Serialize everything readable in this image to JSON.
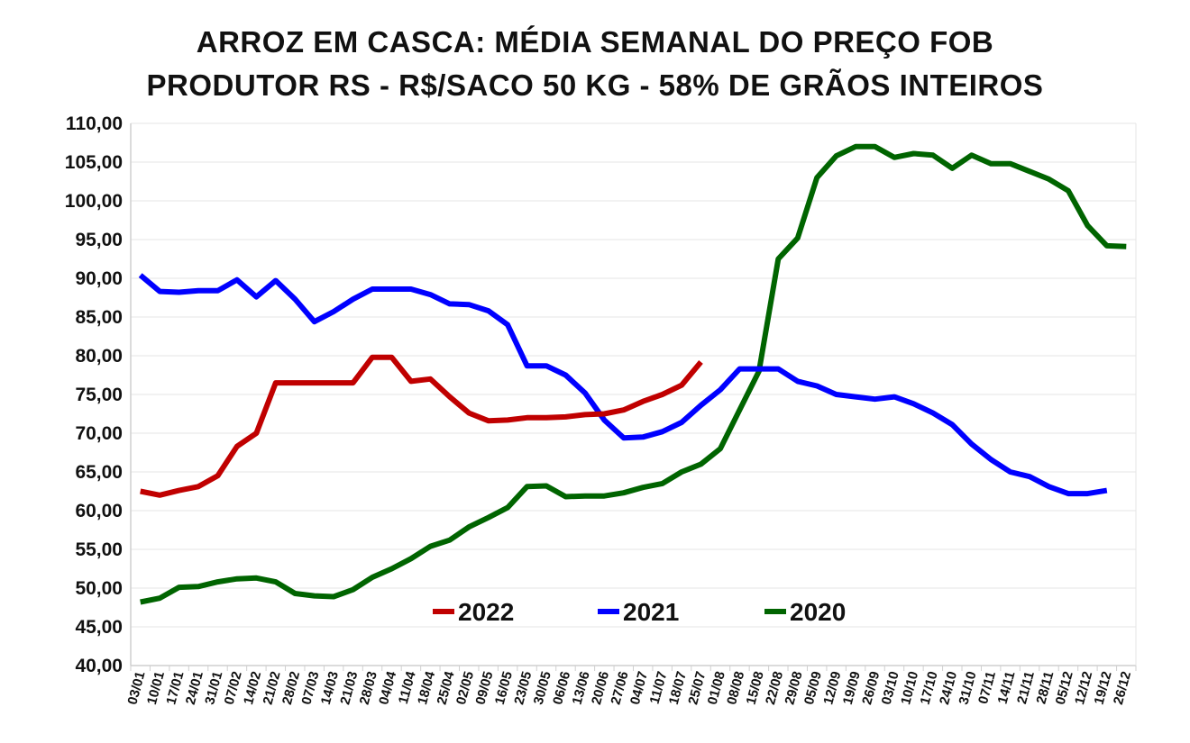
{
  "chart_data": {
    "type": "line",
    "title": "ARROZ EM CASCA: MÉDIA SEMANAL DO PREÇO FOB",
    "subtitle": "PRODUTOR RS - R$/SACO 50 KG - 58% DE GRÃOS INTEIROS",
    "xlabel": "",
    "ylabel": "",
    "ylim": [
      40,
      110
    ],
    "ytick_step": 5,
    "ytick_labels": [
      "40,00",
      "45,00",
      "50,00",
      "55,00",
      "60,00",
      "65,00",
      "70,00",
      "75,00",
      "80,00",
      "85,00",
      "90,00",
      "95,00",
      "100,00",
      "105,00",
      "110,00"
    ],
    "grid": true,
    "legend_position": "lower-center",
    "x": [
      "03/01",
      "10/01",
      "17/01",
      "24/01",
      "31/01",
      "07/02",
      "14/02",
      "21/02",
      "28/02",
      "07/03",
      "14/03",
      "21/03",
      "28/03",
      "04/04",
      "11/04",
      "18/04",
      "25/04",
      "02/05",
      "09/05",
      "16/05",
      "23/05",
      "30/05",
      "06/06",
      "13/06",
      "20/06",
      "27/06",
      "04/07",
      "11/07",
      "18/07",
      "25/07",
      "01/08",
      "08/08",
      "15/08",
      "22/08",
      "29/08",
      "05/09",
      "12/09",
      "19/09",
      "26/09",
      "03/10",
      "10/10",
      "17/10",
      "24/10",
      "31/10",
      "07/11",
      "14/11",
      "21/11",
      "28/11",
      "05/12",
      "12/12",
      "19/12",
      "26/12"
    ],
    "series": [
      {
        "name": "2022",
        "color": "#c00000",
        "values": [
          62.5,
          62.0,
          62.6,
          63.1,
          64.5,
          68.3,
          70.0,
          76.5,
          76.5,
          76.5,
          76.5,
          76.5,
          79.8,
          79.8,
          76.7,
          77.0,
          74.7,
          72.6,
          71.6,
          71.7,
          72.0,
          72.0,
          72.1,
          72.4,
          72.5,
          73.0,
          74.1,
          75.0,
          76.2,
          79.2,
          null,
          null,
          null,
          null,
          null,
          null,
          null,
          null,
          null,
          null,
          null,
          null,
          null,
          null,
          null,
          null,
          null,
          null,
          null,
          null,
          null,
          null
        ]
      },
      {
        "name": "2021",
        "color": "#0000ff",
        "values": [
          90.4,
          88.3,
          88.2,
          88.4,
          88.4,
          89.8,
          87.6,
          89.7,
          87.3,
          84.4,
          85.7,
          87.3,
          88.6,
          88.6,
          88.6,
          87.9,
          86.7,
          86.6,
          85.8,
          84.0,
          78.7,
          78.7,
          77.5,
          75.2,
          71.7,
          69.4,
          69.5,
          70.2,
          71.4,
          73.6,
          75.6,
          78.3,
          78.3,
          78.3,
          76.7,
          76.1,
          75.0,
          74.7,
          74.4,
          74.7,
          73.8,
          72.6,
          71.1,
          68.6,
          66.6,
          65.0,
          64.4,
          63.1,
          62.2,
          62.2,
          62.6,
          null
        ]
      },
      {
        "name": "2020",
        "color": "#006400",
        "values": [
          48.2,
          48.7,
          50.1,
          50.2,
          50.8,
          51.2,
          51.3,
          50.8,
          49.3,
          49.0,
          48.9,
          49.8,
          51.4,
          52.5,
          53.8,
          55.4,
          56.2,
          57.9,
          59.1,
          60.4,
          63.1,
          63.2,
          61.8,
          61.9,
          61.9,
          62.3,
          63.0,
          63.5,
          65.0,
          66.0,
          68.0,
          73.0,
          78.0,
          92.5,
          95.2,
          103.0,
          105.8,
          107.0,
          107.0,
          105.6,
          106.1,
          105.9,
          104.2,
          105.9,
          104.8,
          104.8,
          103.8,
          102.8,
          101.3,
          96.8,
          94.2,
          94.1
        ]
      }
    ]
  }
}
